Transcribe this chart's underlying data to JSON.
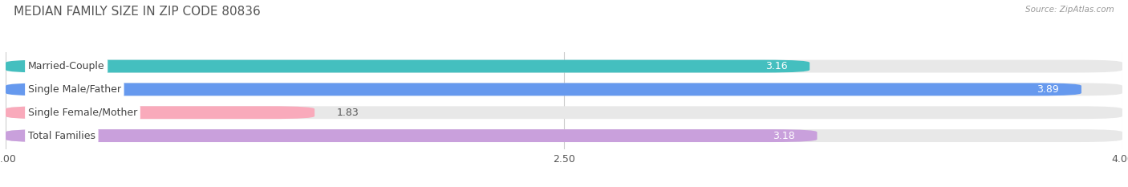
{
  "title": "MEDIAN FAMILY SIZE IN ZIP CODE 80836",
  "source": "Source: ZipAtlas.com",
  "categories": [
    "Married-Couple",
    "Single Male/Father",
    "Single Female/Mother",
    "Total Families"
  ],
  "values": [
    3.16,
    3.89,
    1.83,
    3.18
  ],
  "bar_colors": [
    "#44bfbf",
    "#6699ee",
    "#f9aabb",
    "#c9a0dc"
  ],
  "xmin": 1.0,
  "xmax": 4.0,
  "xticks": [
    1.0,
    2.5,
    4.0
  ],
  "background_color": "#ffffff",
  "bar_bg_color": "#e8e8e8",
  "label_fontsize": 9,
  "value_fontsize": 9,
  "title_fontsize": 11,
  "bar_height": 0.55
}
